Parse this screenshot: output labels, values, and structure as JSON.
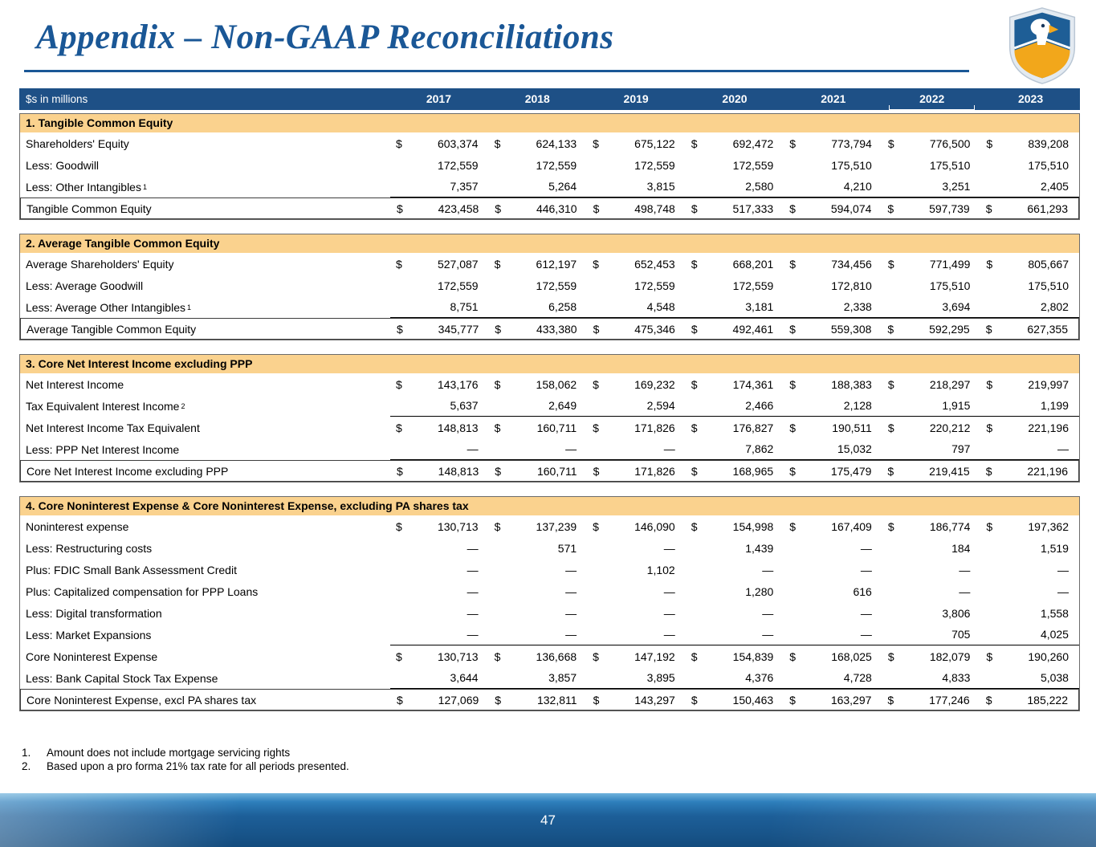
{
  "colors": {
    "title_blue": "#1A5796",
    "header_bar_bg": "#1E5086",
    "section_header_bg": "#FAD28E",
    "footer_blue": "#1D5F99",
    "logo_blue": "#1E5E96",
    "logo_gold": "#F2A71B"
  },
  "slide": {
    "title": "Appendix – Non-GAAP Reconciliations",
    "page_number": "47"
  },
  "table": {
    "unit_label": "$s in millions",
    "years": [
      "2017",
      "2018",
      "2019",
      "2020",
      "2021",
      "2022",
      "2023"
    ],
    "highlight_year": "2022",
    "sections": [
      {
        "header": "1. Tangible Common Equity",
        "rows": [
          {
            "label": "Shareholders' Equity",
            "dollar": true,
            "values": [
              "603,374",
              "624,133",
              "675,122",
              "692,472",
              "773,794",
              "776,500",
              "839,208"
            ]
          },
          {
            "label": "Less: Goodwill",
            "values": [
              "172,559",
              "172,559",
              "172,559",
              "172,559",
              "175,510",
              "175,510",
              "175,510"
            ]
          },
          {
            "label": "Less: Other Intangibles",
            "sup": "1",
            "rule_below": true,
            "values": [
              "7,357",
              "5,264",
              "3,815",
              "2,580",
              "4,210",
              "3,251",
              "2,405"
            ]
          },
          {
            "label": "Tangible Common Equity",
            "dollar": true,
            "boxed": true,
            "values": [
              "423,458",
              "446,310",
              "498,748",
              "517,333",
              "594,074",
              "597,739",
              "661,293"
            ]
          }
        ]
      },
      {
        "header": "2. Average Tangible Common Equity",
        "rows": [
          {
            "label": "Average Shareholders' Equity",
            "dollar": true,
            "values": [
              "527,087",
              "612,197",
              "652,453",
              "668,201",
              "734,456",
              "771,499",
              "805,667"
            ]
          },
          {
            "label": "Less: Average Goodwill",
            "values": [
              "172,559",
              "172,559",
              "172,559",
              "172,559",
              "172,810",
              "175,510",
              "175,510"
            ]
          },
          {
            "label": "Less: Average Other Intangibles",
            "sup": "1",
            "rule_below": true,
            "values": [
              "8,751",
              "6,258",
              "4,548",
              "3,181",
              "2,338",
              "3,694",
              "2,802"
            ]
          },
          {
            "label": "Average Tangible Common Equity",
            "dollar": true,
            "boxed": true,
            "values": [
              "345,777",
              "433,380",
              "475,346",
              "492,461",
              "559,308",
              "592,295",
              "627,355"
            ]
          }
        ]
      },
      {
        "header": "3. Core Net Interest Income excluding PPP",
        "rows": [
          {
            "label": "Net Interest Income",
            "dollar": true,
            "values": [
              "143,176",
              "158,062",
              "169,232",
              "174,361",
              "188,383",
              "218,297",
              "219,997"
            ]
          },
          {
            "label": "Tax Equivalent Interest Income",
            "sup": "2",
            "rule_below": true,
            "values": [
              "5,637",
              "2,649",
              "2,594",
              "2,466",
              "2,128",
              "1,915",
              "1,199"
            ]
          },
          {
            "label": "Net Interest Income Tax Equivalent",
            "dollar": true,
            "values": [
              "148,813",
              "160,711",
              "171,826",
              "176,827",
              "190,511",
              "220,212",
              "221,196"
            ]
          },
          {
            "label": "Less: PPP Net Interest Income",
            "rule_below": true,
            "values": [
              "—",
              "—",
              "—",
              "7,862",
              "15,032",
              "797",
              "—"
            ]
          },
          {
            "label": "Core Net Interest Income excluding PPP",
            "dollar": true,
            "boxed": true,
            "values": [
              "148,813",
              "160,711",
              "171,826",
              "168,965",
              "175,479",
              "219,415",
              "221,196"
            ]
          }
        ]
      },
      {
        "header": "4. Core Noninterest Expense & Core Noninterest Expense, excluding PA shares tax",
        "rows": [
          {
            "label": "Noninterest expense",
            "dollar": true,
            "values": [
              "130,713",
              "137,239",
              "146,090",
              "154,998",
              "167,409",
              "186,774",
              "197,362"
            ]
          },
          {
            "label": "Less: Restructuring costs",
            "values": [
              "—",
              "571",
              "—",
              "1,439",
              "—",
              "184",
              "1,519"
            ]
          },
          {
            "label": "Plus: FDIC Small Bank Assessment Credit",
            "values": [
              "—",
              "—",
              "1,102",
              "—",
              "—",
              "—",
              "—"
            ]
          },
          {
            "label": "Plus: Capitalized compensation for PPP Loans",
            "values": [
              "—",
              "—",
              "—",
              "1,280",
              "616",
              "—",
              "—"
            ]
          },
          {
            "label": "Less: Digital transformation",
            "values": [
              "—",
              "—",
              "—",
              "—",
              "—",
              "3,806",
              "1,558"
            ]
          },
          {
            "label": "Less: Market Expansions",
            "rule_below": true,
            "values": [
              "—",
              "—",
              "—",
              "—",
              "—",
              "705",
              "4,025"
            ]
          },
          {
            "label": "Core Noninterest Expense",
            "dollar": true,
            "values": [
              "130,713",
              "136,668",
              "147,192",
              "154,839",
              "168,025",
              "182,079",
              "190,260"
            ]
          },
          {
            "label": "Less: Bank Capital Stock Tax Expense",
            "rule_below": true,
            "values": [
              "3,644",
              "3,857",
              "3,895",
              "4,376",
              "4,728",
              "4,833",
              "5,038"
            ]
          },
          {
            "label": "Core Noninterest Expense, excl PA shares tax",
            "dollar": true,
            "boxed": true,
            "values": [
              "127,069",
              "132,811",
              "143,297",
              "150,463",
              "163,297",
              "177,246",
              "185,222"
            ]
          }
        ]
      }
    ]
  },
  "footnotes": [
    {
      "num": "1.",
      "text": "Amount does not include mortgage servicing rights"
    },
    {
      "num": "2.",
      "text": "Based upon a pro forma 21% tax rate for all periods presented."
    }
  ]
}
